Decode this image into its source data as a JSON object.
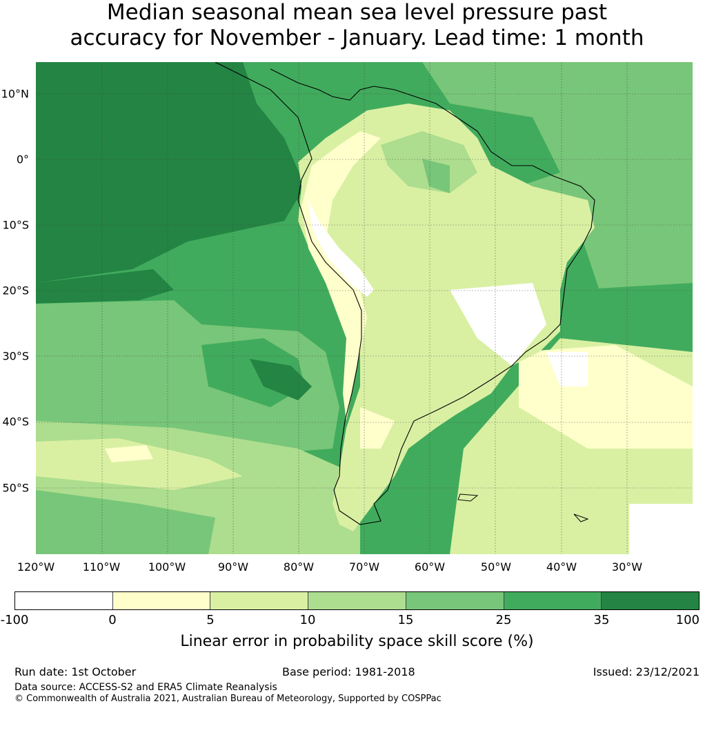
{
  "title_line1": "Median seasonal mean sea level pressure past",
  "title_line2": "accuracy for November - January. Lead time: 1 month",
  "map": {
    "lat_labels": [
      "10°N",
      "0°",
      "10°S",
      "20°S",
      "30°S",
      "40°S",
      "50°S"
    ],
    "lon_labels": [
      "120°W",
      "110°W",
      "100°W",
      "90°W",
      "80°W",
      "70°W",
      "60°W",
      "50°W",
      "40°W",
      "30°W"
    ],
    "ocean_color": "#41ab5d",
    "coastline_color": "#000000"
  },
  "colorbar": {
    "ticks": [
      "-100",
      "0",
      "5",
      "10",
      "15",
      "25",
      "35",
      "100"
    ],
    "colors": [
      "#ffffff",
      "#ffffcc",
      "#d9f0a3",
      "#addd8e",
      "#78c679",
      "#41ab5d",
      "#238443"
    ],
    "label": "Linear error in probability space skill score (%)"
  },
  "footer": {
    "run_date": "Run date: 1st October",
    "base_period": "Base period: 1981-2018",
    "issued": "Issued: 23/12/2021",
    "data_source": "Data source: ACCESS-S2 and ERA5 Climate Reanalysis",
    "copyright": "© Commonwealth of Australia 2021, Australian Bureau of Meteorology, Supported by COSPPac"
  }
}
